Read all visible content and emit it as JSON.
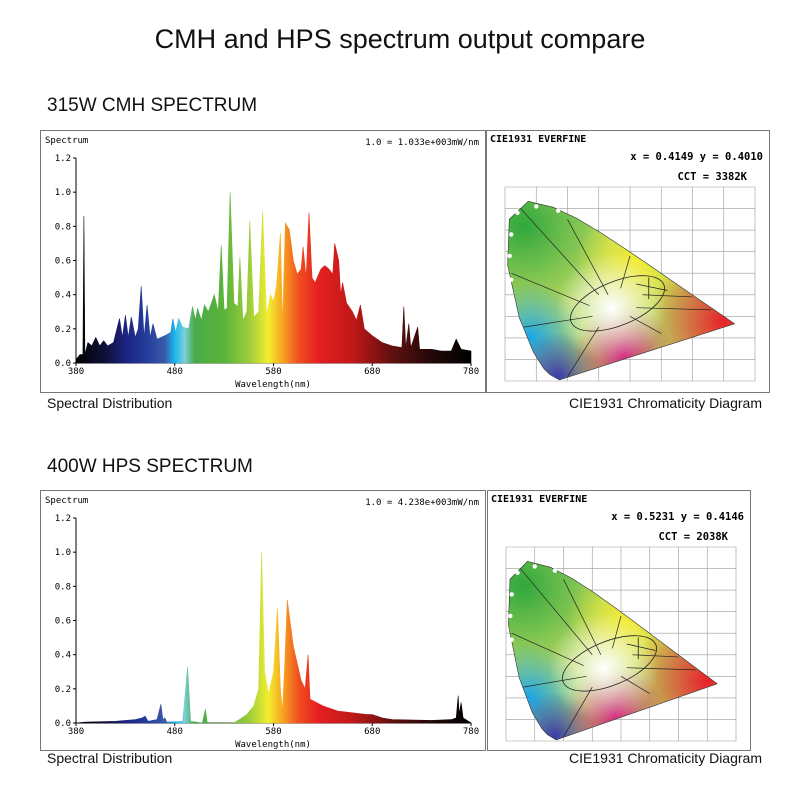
{
  "title": "CMH and HPS  spectrum output compare",
  "panels": [
    {
      "heading": "315W CMH SPECTRUM",
      "left_caption": "Spectral Distribution",
      "right_caption": "CIE1931 Chromaticity Diagram",
      "cie": {
        "header": "CIE1931   EVERFINE",
        "coords": "x = 0.4149 y = 0.4010",
        "cct": "CCT = 3382K"
      }
    },
    {
      "heading": "400W HPS SPECTRUM",
      "left_caption": "Spectral Distribution",
      "right_caption": "CIE1931 Chromaticity Diagram",
      "cie": {
        "header": "CIE1931   EVERFINE",
        "coords": "x = 0.5231 y = 0.4146",
        "cct": "CCT = 2038K"
      }
    }
  ],
  "chart_data": [
    {
      "type": "area",
      "ylabel": "Spectrum",
      "xlabel": "Wavelength(nm)",
      "note": "1.0 = 1.033e+003mW/nm",
      "xlim": [
        380,
        780
      ],
      "ylim": [
        0,
        1.2
      ],
      "xticks": [
        "380",
        "480",
        "580",
        "680",
        "780"
      ],
      "yticks": [
        "0.0",
        "0.2",
        "0.4",
        "0.6",
        "0.8",
        "1.0",
        "1.2"
      ],
      "fill": "visible-spectrum gradient",
      "x": [
        380,
        384,
        387,
        388,
        389,
        392,
        396,
        400,
        404,
        408,
        412,
        418,
        424,
        427,
        430,
        433,
        436,
        440,
        443,
        446,
        449,
        452,
        455,
        458,
        462,
        470,
        476,
        478,
        481,
        484,
        488,
        494,
        498,
        501,
        503,
        507,
        510,
        514,
        520,
        524,
        527,
        530,
        533,
        536,
        540,
        544,
        546,
        549,
        553,
        556,
        560,
        565,
        569,
        573,
        577,
        580,
        583,
        587,
        589,
        592,
        596,
        600,
        604,
        608,
        610,
        613,
        616,
        619,
        622,
        628,
        632,
        636,
        640,
        642,
        646,
        648,
        650,
        654,
        660,
        664,
        668,
        672,
        680,
        690,
        700,
        710,
        712,
        714,
        717,
        719,
        726,
        728,
        740,
        750,
        760,
        765,
        770,
        780
      ],
      "y": [
        0.02,
        0.05,
        0.05,
        0.86,
        0.05,
        0.12,
        0.1,
        0.15,
        0.1,
        0.13,
        0.1,
        0.12,
        0.26,
        0.15,
        0.28,
        0.15,
        0.27,
        0.15,
        0.2,
        0.45,
        0.15,
        0.34,
        0.15,
        0.23,
        0.14,
        0.16,
        0.18,
        0.26,
        0.18,
        0.26,
        0.21,
        0.2,
        0.33,
        0.25,
        0.32,
        0.25,
        0.34,
        0.3,
        0.4,
        0.3,
        0.69,
        0.31,
        0.32,
        1.0,
        0.35,
        0.33,
        0.62,
        0.25,
        0.3,
        0.83,
        0.27,
        0.3,
        0.89,
        0.28,
        0.4,
        0.36,
        0.45,
        0.76,
        0.22,
        0.82,
        0.78,
        0.6,
        0.52,
        0.55,
        0.68,
        0.5,
        0.88,
        0.5,
        0.47,
        0.55,
        0.57,
        0.55,
        0.52,
        0.7,
        0.6,
        0.4,
        0.47,
        0.35,
        0.3,
        0.25,
        0.34,
        0.2,
        0.16,
        0.12,
        0.1,
        0.09,
        0.33,
        0.09,
        0.23,
        0.09,
        0.21,
        0.08,
        0.08,
        0.07,
        0.07,
        0.14,
        0.08,
        0.07
      ]
    },
    {
      "type": "area",
      "ylabel": "Spectrum",
      "xlabel": "Wavelength(nm)",
      "note": "1.0 = 4.238e+003mW/nm",
      "xlim": [
        380,
        780
      ],
      "ylim": [
        0,
        1.2
      ],
      "xticks": [
        "380",
        "480",
        "580",
        "680",
        "780"
      ],
      "yticks": [
        "0.0",
        "0.2",
        "0.4",
        "0.6",
        "0.8",
        "1.0",
        "1.2"
      ],
      "fill": "visible-spectrum gradient",
      "x": [
        380,
        390,
        420,
        440,
        447,
        450,
        453,
        462,
        466,
        468,
        470,
        472,
        488,
        493,
        496,
        508,
        511,
        513,
        540,
        548,
        553,
        560,
        565,
        568,
        571,
        575,
        580,
        584,
        587,
        589,
        591,
        594,
        600,
        608,
        612,
        615,
        617,
        630,
        645,
        660,
        675,
        680,
        690,
        700,
        740,
        760,
        765,
        767,
        768,
        770,
        772,
        780
      ],
      "y": [
        0,
        0.005,
        0.01,
        0.02,
        0.03,
        0.04,
        0.01,
        0.02,
        0.11,
        0.02,
        0.03,
        0.005,
        0.01,
        0.33,
        0.01,
        0.0,
        0.08,
        0.0,
        0.0,
        0.03,
        0.05,
        0.1,
        0.2,
        1.0,
        0.3,
        0.17,
        0.3,
        0.67,
        0.2,
        0.07,
        0.3,
        0.72,
        0.45,
        0.25,
        0.2,
        0.4,
        0.14,
        0.1,
        0.07,
        0.06,
        0.05,
        0.05,
        0.03,
        0.02,
        0.015,
        0.02,
        0.03,
        0.16,
        0.05,
        0.12,
        0.03,
        0.0
      ]
    }
  ]
}
